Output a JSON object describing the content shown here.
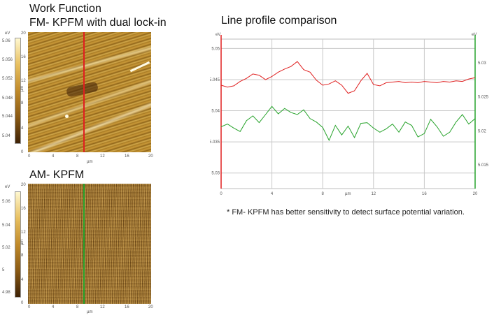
{
  "fm_panel": {
    "title_line1": "Work Function",
    "title_line2": "FM- KPFM with dual lock-in",
    "colorbar_unit": "eV",
    "colorbar_ticks": [
      "5.06",
      "5.056",
      "5.052",
      "5.048",
      "5.044",
      "5.04"
    ],
    "y_unit": "µm",
    "x_unit": "µm",
    "axis_ticks_y": [
      "20",
      "16",
      "12",
      "8",
      "4",
      "0"
    ],
    "axis_ticks_x": [
      "0",
      "4",
      "8",
      "12",
      "16",
      "20"
    ],
    "line_color": "#e01f1f"
  },
  "am_panel": {
    "title": "AM- KPFM",
    "colorbar_unit": "eV",
    "colorbar_ticks": [
      "5.06",
      "5.04",
      "5.02",
      "5",
      "4.98"
    ],
    "y_unit": "µm",
    "x_unit": "µm",
    "axis_ticks_y": [
      "20",
      "16",
      "12",
      "8",
      "4",
      "0"
    ],
    "axis_ticks_x": [
      "0",
      "4",
      "8",
      "12",
      "16",
      "20"
    ],
    "line_color": "#27a32b"
  },
  "chart_title": "Line profile comparison",
  "footnote": "* FM- KPFM has better sensitivity to detect surface potential variation.",
  "chart_data": {
    "type": "line",
    "title": "Line profile comparison",
    "xlabel": "µm",
    "ylabel_left": "eV",
    "ylabel_right": "eV",
    "xlim": [
      0,
      20
    ],
    "xticks": [
      "0",
      "4",
      "8",
      "12",
      "16",
      "20"
    ],
    "ylim_left": [
      5.0275,
      5.0515
    ],
    "yticks_left": [
      "5.05",
      "5.045",
      "5.04",
      "5.035",
      "5.03"
    ],
    "ylim_right": [
      5.0115,
      5.0335
    ],
    "yticks_right": [
      "5.03",
      "5.025",
      "5.02",
      "5.015"
    ],
    "grid": true,
    "series": [
      {
        "axis": "left",
        "color": "#e01f1f",
        "x": [
          0,
          0.5,
          1,
          1.5,
          2,
          2.5,
          3,
          3.5,
          4,
          4.5,
          5,
          5.5,
          6,
          6.5,
          7,
          7.5,
          8,
          8.5,
          9,
          9.5,
          10,
          10.5,
          11,
          11.5,
          12,
          12.5,
          13,
          13.5,
          14,
          14.5,
          15,
          15.5,
          16,
          16.5,
          17,
          17.5,
          18,
          18.5,
          19,
          19.5,
          20
        ],
        "y": [
          5.0441,
          5.0438,
          5.044,
          5.0447,
          5.0452,
          5.0459,
          5.0457,
          5.045,
          5.0455,
          5.0462,
          5.0467,
          5.0471,
          5.0479,
          5.0466,
          5.0462,
          5.0449,
          5.0441,
          5.0443,
          5.0448,
          5.0441,
          5.0428,
          5.0432,
          5.0448,
          5.046,
          5.0442,
          5.044,
          5.0445,
          5.0446,
          5.0447,
          5.0445,
          5.0446,
          5.0445,
          5.0447,
          5.0446,
          5.0445,
          5.0447,
          5.0446,
          5.0448,
          5.0447,
          5.0451,
          5.0453
        ]
      },
      {
        "axis": "right",
        "color": "#27a32b",
        "x": [
          0,
          0.5,
          1,
          1.5,
          2,
          2.5,
          3,
          3.5,
          4,
          4.5,
          5,
          5.5,
          6,
          6.5,
          7,
          7.5,
          8,
          8.5,
          9,
          9.5,
          10,
          10.5,
          11,
          11.5,
          12,
          12.5,
          13,
          13.5,
          14,
          14.5,
          15,
          15.5,
          16,
          16.5,
          17,
          17.5,
          18,
          18.5,
          19,
          19.5,
          20
        ],
        "y": [
          5.0206,
          5.021,
          5.0204,
          5.0199,
          5.0215,
          5.0222,
          5.0212,
          5.0224,
          5.0236,
          5.0225,
          5.0233,
          5.0227,
          5.0224,
          5.0231,
          5.0218,
          5.0213,
          5.0205,
          5.0186,
          5.0208,
          5.0194,
          5.0207,
          5.019,
          5.0211,
          5.0212,
          5.0204,
          5.0198,
          5.0203,
          5.021,
          5.0198,
          5.0213,
          5.0208,
          5.0191,
          5.0196,
          5.0217,
          5.0206,
          5.0192,
          5.0198,
          5.0213,
          5.0224,
          5.021,
          5.0218
        ]
      }
    ]
  }
}
